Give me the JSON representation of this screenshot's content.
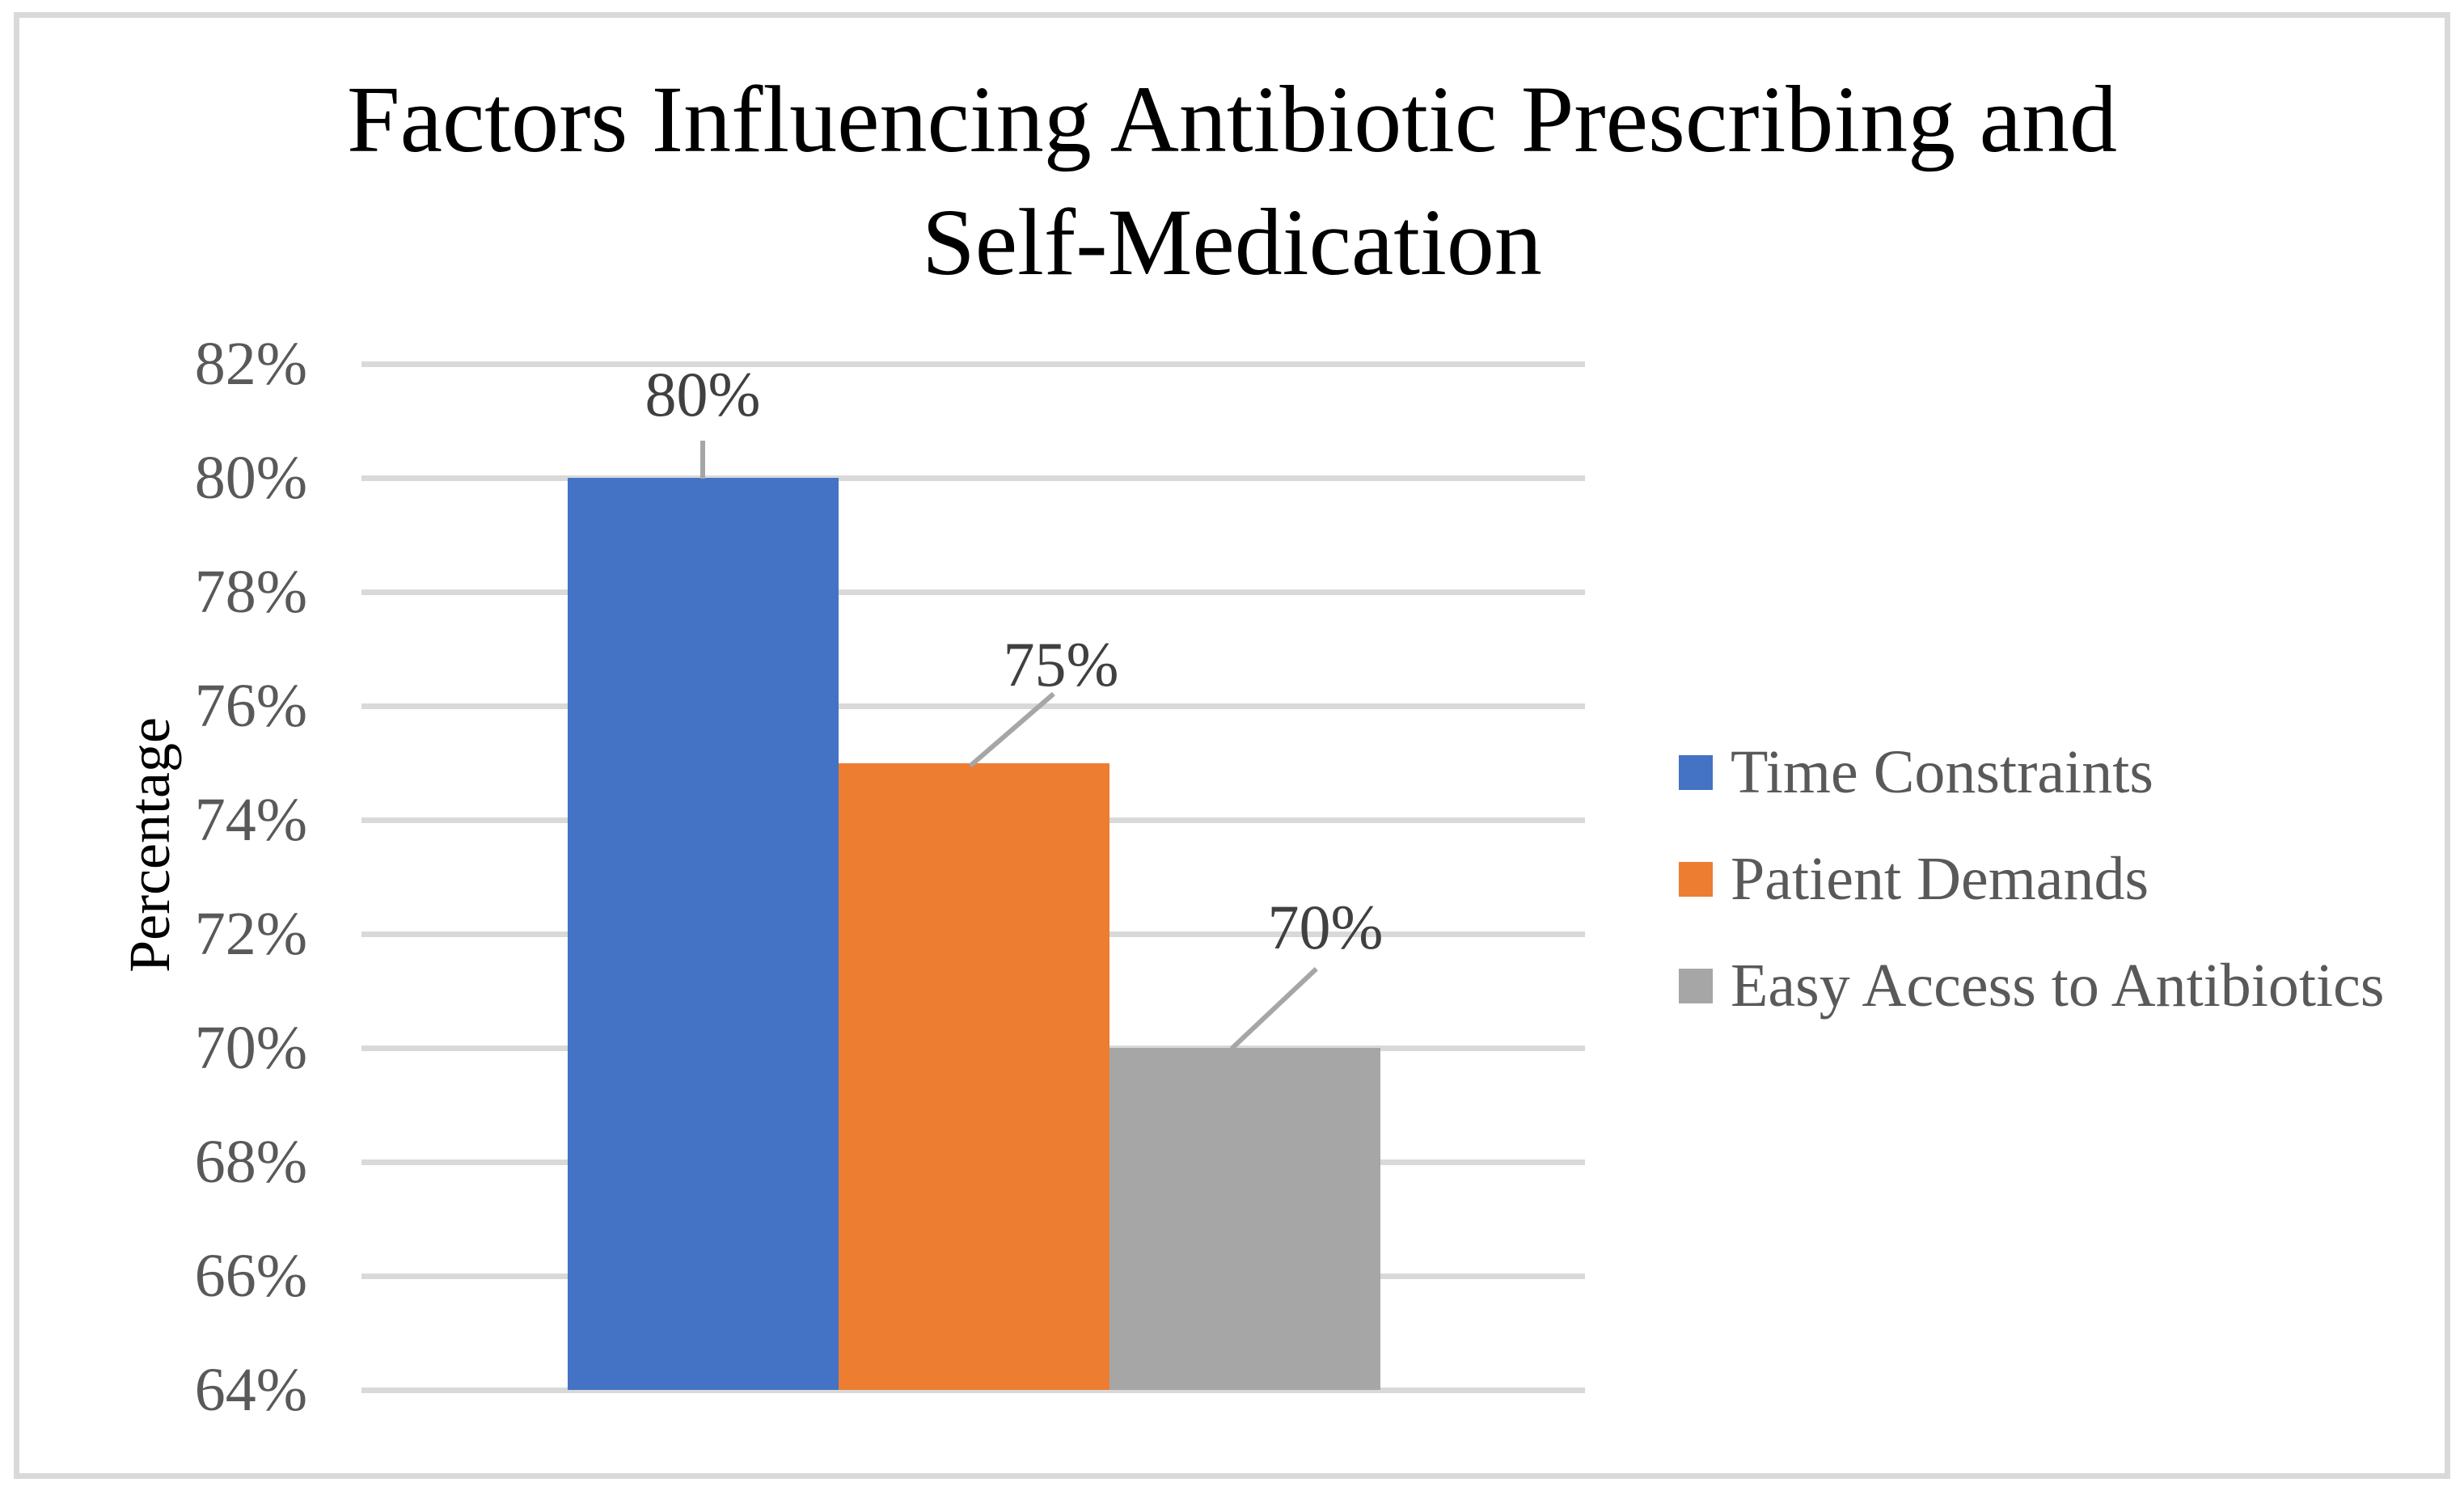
{
  "figure": {
    "background": "#FFFFFF",
    "border_color": "#D9D9D9"
  },
  "colors": {
    "gridline": "#D9D9D9",
    "leader_line": "#A6A6A6",
    "tick_text": "#595959",
    "legend_text": "#595959",
    "data_label_text": "#404040",
    "title_text": "#000000",
    "axis_title_text": "#000000",
    "series_blue": "#4472C4",
    "series_orange": "#ED7D31",
    "series_gray": "#A6A6A6"
  },
  "chart_data": {
    "type": "bar",
    "title": "Factors Influencing Antibiotic Prescribing and Self-Medication",
    "title_lines": [
      "Factors Influencing Antibiotic Prescribing and",
      "Self-Medication"
    ],
    "xlabel": "",
    "ylabel": "Percentage",
    "ylim": [
      64,
      82
    ],
    "ytick_step": 2,
    "yticks": [
      {
        "value": 82,
        "label": "82%"
      },
      {
        "value": 80,
        "label": "80%"
      },
      {
        "value": 78,
        "label": "78%"
      },
      {
        "value": 76,
        "label": "76%"
      },
      {
        "value": 74,
        "label": "74%"
      },
      {
        "value": 72,
        "label": "72%"
      },
      {
        "value": 70,
        "label": "70%"
      },
      {
        "value": 68,
        "label": "68%"
      },
      {
        "value": 66,
        "label": "66%"
      },
      {
        "value": 64,
        "label": "64%"
      }
    ],
    "grid": "horizontal",
    "legend_position": "right",
    "categories": [
      "Time Constraints",
      "Patient Demands",
      "Easy Access to Antibiotics"
    ],
    "values": [
      80,
      75,
      70
    ],
    "series": [
      {
        "name": "Time Constraints",
        "value": 80,
        "data_label": "80%",
        "color": "#4472C4"
      },
      {
        "name": "Patient Demands",
        "value": 75,
        "data_label": "75%",
        "color": "#ED7D31"
      },
      {
        "name": "Easy Access to Antibiotics",
        "value": 70,
        "data_label": "70%",
        "color": "#A6A6A6"
      }
    ]
  },
  "legend": {
    "items": [
      {
        "label": "Time Constraints",
        "color": "#4472C4"
      },
      {
        "label": "Patient Demands",
        "color": "#ED7D31"
      },
      {
        "label": "Easy Access to Antibiotics",
        "color": "#A6A6A6"
      }
    ]
  }
}
